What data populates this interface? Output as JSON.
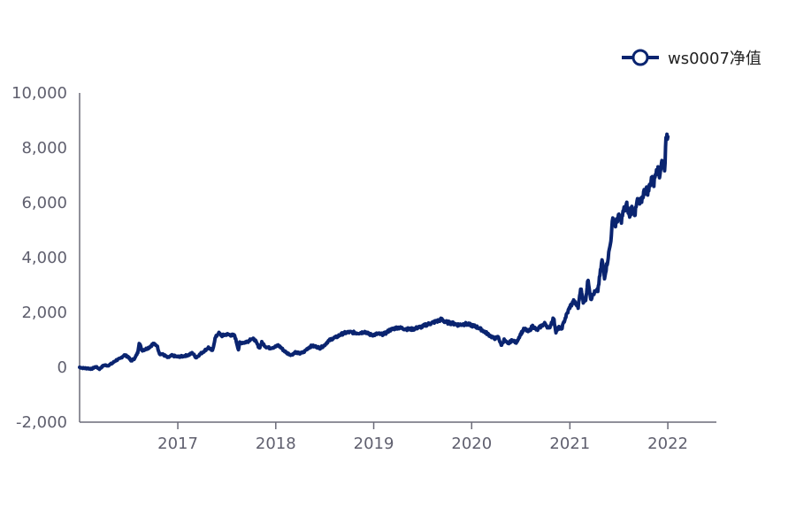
{
  "chart_data": {
    "type": "line",
    "series": [
      {
        "name": "ws0007净值",
        "color": "#0a2470",
        "points": [
          [
            "2016-01-01",
            0
          ],
          [
            "2016-01-15",
            -30
          ],
          [
            "2016-02-01",
            -40
          ],
          [
            "2016-02-15",
            -60
          ],
          [
            "2016-03-01",
            20
          ],
          [
            "2016-03-15",
            -60
          ],
          [
            "2016-04-01",
            80
          ],
          [
            "2016-04-15",
            60
          ],
          [
            "2016-05-01",
            140
          ],
          [
            "2016-05-15",
            250
          ],
          [
            "2016-06-01",
            320
          ],
          [
            "2016-06-15",
            450
          ],
          [
            "2016-07-01",
            380
          ],
          [
            "2016-07-10",
            230
          ],
          [
            "2016-07-25",
            330
          ],
          [
            "2016-08-05",
            550
          ],
          [
            "2016-08-10",
            900
          ],
          [
            "2016-08-20",
            620
          ],
          [
            "2016-09-01",
            650
          ],
          [
            "2016-09-15",
            720
          ],
          [
            "2016-10-01",
            850
          ],
          [
            "2016-10-15",
            800
          ],
          [
            "2016-10-25",
            500
          ],
          [
            "2016-11-10",
            450
          ],
          [
            "2016-11-25",
            350
          ],
          [
            "2016-12-10",
            430
          ],
          [
            "2017-01-01",
            380
          ],
          [
            "2017-01-20",
            400
          ],
          [
            "2017-02-10",
            450
          ],
          [
            "2017-02-25",
            520
          ],
          [
            "2017-03-10",
            350
          ],
          [
            "2017-03-25",
            480
          ],
          [
            "2017-04-10",
            600
          ],
          [
            "2017-04-25",
            720
          ],
          [
            "2017-05-10",
            600
          ],
          [
            "2017-05-20",
            1050
          ],
          [
            "2017-06-01",
            1250
          ],
          [
            "2017-06-15",
            1150
          ],
          [
            "2017-07-01",
            1200
          ],
          [
            "2017-07-15",
            1180
          ],
          [
            "2017-08-01",
            1150
          ],
          [
            "2017-08-15",
            650
          ],
          [
            "2017-08-20",
            900
          ],
          [
            "2017-09-05",
            900
          ],
          [
            "2017-09-20",
            950
          ],
          [
            "2017-10-01",
            1050
          ],
          [
            "2017-10-15",
            1000
          ],
          [
            "2017-11-01",
            700
          ],
          [
            "2017-11-10",
            900
          ],
          [
            "2017-11-25",
            750
          ],
          [
            "2017-12-10",
            700
          ],
          [
            "2018-01-01",
            750
          ],
          [
            "2018-01-10",
            800
          ],
          [
            "2018-01-20",
            720
          ],
          [
            "2018-02-01",
            600
          ],
          [
            "2018-02-15",
            500
          ],
          [
            "2018-03-01",
            450
          ],
          [
            "2018-03-15",
            550
          ],
          [
            "2018-04-01",
            500
          ],
          [
            "2018-04-15",
            550
          ],
          [
            "2018-05-01",
            700
          ],
          [
            "2018-05-15",
            780
          ],
          [
            "2018-06-01",
            750
          ],
          [
            "2018-06-15",
            700
          ],
          [
            "2018-07-01",
            800
          ],
          [
            "2018-07-15",
            950
          ],
          [
            "2018-08-01",
            1050
          ],
          [
            "2018-08-15",
            1100
          ],
          [
            "2018-09-01",
            1200
          ],
          [
            "2018-09-15",
            1250
          ],
          [
            "2018-10-01",
            1280
          ],
          [
            "2018-10-15",
            1270
          ],
          [
            "2018-11-01",
            1250
          ],
          [
            "2018-11-15",
            1260
          ],
          [
            "2018-12-01",
            1300
          ],
          [
            "2018-12-15",
            1200
          ],
          [
            "2019-01-01",
            1180
          ],
          [
            "2019-01-15",
            1220
          ],
          [
            "2019-02-01",
            1200
          ],
          [
            "2019-02-15",
            1250
          ],
          [
            "2019-03-01",
            1350
          ],
          [
            "2019-03-15",
            1400
          ],
          [
            "2019-04-01",
            1450
          ],
          [
            "2019-04-15",
            1420
          ],
          [
            "2019-05-01",
            1400
          ],
          [
            "2019-05-15",
            1380
          ],
          [
            "2019-06-01",
            1400
          ],
          [
            "2019-06-15",
            1450
          ],
          [
            "2019-07-01",
            1480
          ],
          [
            "2019-07-15",
            1550
          ],
          [
            "2019-08-01",
            1600
          ],
          [
            "2019-08-15",
            1650
          ],
          [
            "2019-09-01",
            1700
          ],
          [
            "2019-09-10",
            1750
          ],
          [
            "2019-09-25",
            1650
          ],
          [
            "2019-10-10",
            1620
          ],
          [
            "2019-10-25",
            1600
          ],
          [
            "2019-11-10",
            1550
          ],
          [
            "2019-11-25",
            1560
          ],
          [
            "2019-12-10",
            1580
          ],
          [
            "2019-12-25",
            1550
          ],
          [
            "2020-01-10",
            1500
          ],
          [
            "2020-01-25",
            1450
          ],
          [
            "2020-02-10",
            1350
          ],
          [
            "2020-02-25",
            1250
          ],
          [
            "2020-03-10",
            1150
          ],
          [
            "2020-03-25",
            1050
          ],
          [
            "2020-04-10",
            1100
          ],
          [
            "2020-04-20",
            800
          ],
          [
            "2020-05-01",
            1000
          ],
          [
            "2020-05-15",
            850
          ],
          [
            "2020-06-01",
            1000
          ],
          [
            "2020-06-15",
            900
          ],
          [
            "2020-07-01",
            1200
          ],
          [
            "2020-07-15",
            1400
          ],
          [
            "2020-08-01",
            1300
          ],
          [
            "2020-08-15",
            1500
          ],
          [
            "2020-09-01",
            1350
          ],
          [
            "2020-09-15",
            1500
          ],
          [
            "2020-10-01",
            1600
          ],
          [
            "2020-10-15",
            1400
          ],
          [
            "2020-11-01",
            1800
          ],
          [
            "2020-11-10",
            1300
          ],
          [
            "2020-11-20",
            1450
          ],
          [
            "2020-12-01",
            1400
          ],
          [
            "2020-12-15",
            1800
          ],
          [
            "2021-01-01",
            2200
          ],
          [
            "2021-01-15",
            2400
          ],
          [
            "2021-02-01",
            2200
          ],
          [
            "2021-02-10",
            2900
          ],
          [
            "2021-02-20",
            2400
          ],
          [
            "2021-03-01",
            2500
          ],
          [
            "2021-03-10",
            3200
          ],
          [
            "2021-03-20",
            2500
          ],
          [
            "2021-04-01",
            2700
          ],
          [
            "2021-04-15",
            2800
          ],
          [
            "2021-05-01",
            3900
          ],
          [
            "2021-05-10",
            3300
          ],
          [
            "2021-05-20",
            3800
          ],
          [
            "2021-06-01",
            4500
          ],
          [
            "2021-06-10",
            5400
          ],
          [
            "2021-06-20",
            5200
          ],
          [
            "2021-07-01",
            5500
          ],
          [
            "2021-07-10",
            5300
          ],
          [
            "2021-07-20",
            5700
          ],
          [
            "2021-08-01",
            5900
          ],
          [
            "2021-08-10",
            5500
          ],
          [
            "2021-08-20",
            5800
          ],
          [
            "2021-09-01",
            5600
          ],
          [
            "2021-09-10",
            6100
          ],
          [
            "2021-09-20",
            5900
          ],
          [
            "2021-10-01",
            6300
          ],
          [
            "2021-10-10",
            6500
          ],
          [
            "2021-10-20",
            6400
          ],
          [
            "2021-11-01",
            6900
          ],
          [
            "2021-11-10",
            6700
          ],
          [
            "2021-11-20",
            7300
          ],
          [
            "2021-12-01",
            7000
          ],
          [
            "2021-12-10",
            7500
          ],
          [
            "2021-12-20",
            7300
          ],
          [
            "2021-12-27",
            8500
          ],
          [
            "2022-01-01",
            8400
          ]
        ]
      }
    ],
    "x_axis": {
      "range": [
        "2016-01-01",
        "2022-07-01"
      ],
      "tick_labels": [
        "2017",
        "2018",
        "2019",
        "2020",
        "2021",
        "2022"
      ]
    },
    "y_axis": {
      "range": [
        -2000,
        10000
      ],
      "tick_labels": [
        "10,000",
        "8,000",
        "6,000",
        "4,000",
        "2,000",
        "0",
        "-2,000"
      ]
    },
    "grid": false,
    "legend_position": "top-right",
    "axis_color": "#6b6b78",
    "text_color": "#5f5f6e"
  }
}
